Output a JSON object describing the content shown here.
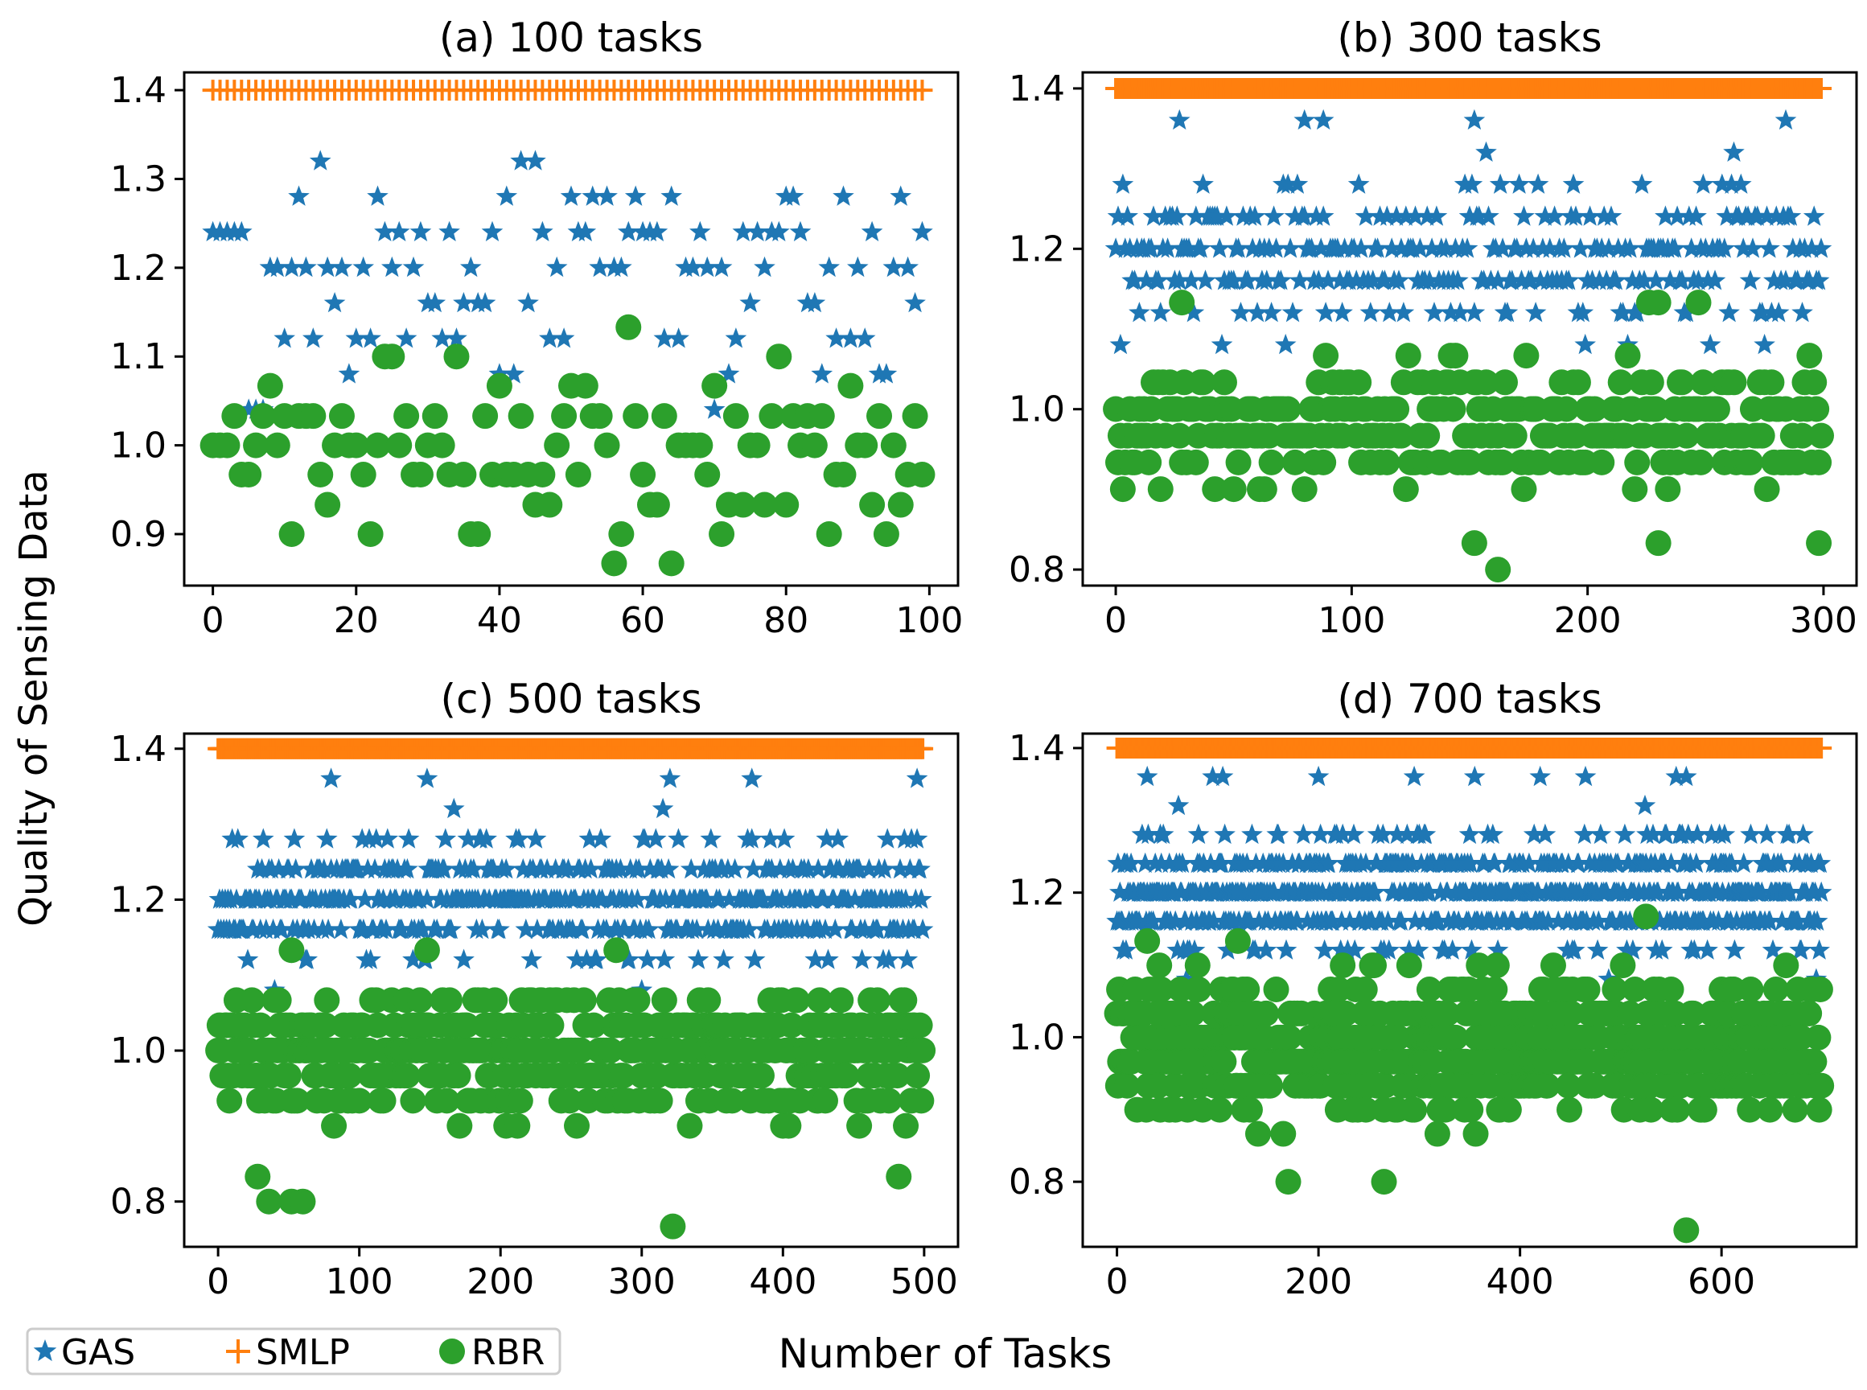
{
  "figure": {
    "ylabel": "Quality of Sensing Data",
    "xlabel": "Number of Tasks",
    "colors": {
      "GAS": "#1f77b4",
      "SMLP": "#ff7f0e",
      "RBR": "#2ca02c",
      "frame": "#000000",
      "legend_border": "#cccccc"
    },
    "legend": [
      {
        "name": "GAS",
        "marker": "star"
      },
      {
        "name": "SMLP",
        "marker": "plus"
      },
      {
        "name": "RBR",
        "marker": "circle"
      }
    ]
  },
  "chart_data": [
    {
      "type": "scatter",
      "title": "(a) 100 tasks",
      "n_tasks": 100,
      "xlim": [
        -4,
        104
      ],
      "ylim": [
        0.842,
        1.42
      ],
      "xticks": [
        0,
        20,
        40,
        60,
        80,
        100
      ],
      "yticks": [
        0.9,
        1.0,
        1.1,
        1.2,
        1.3,
        1.4
      ],
      "ytick_decimals": 1,
      "series": [
        {
          "name": "GAS",
          "marker": "star",
          "values": [
            1.24,
            1.24,
            1.24,
            1.24,
            1.24,
            1.04,
            1.04,
            1.04,
            1.2,
            1.2,
            1.12,
            1.2,
            1.28,
            1.2,
            1.12,
            1.32,
            1.2,
            1.16,
            1.2,
            1.08,
            1.12,
            1.2,
            1.12,
            1.28,
            1.24,
            1.2,
            1.24,
            1.12,
            1.2,
            1.24,
            1.16,
            1.16,
            1.12,
            1.24,
            1.12,
            1.16,
            1.2,
            1.16,
            1.16,
            1.24,
            1.08,
            1.28,
            1.08,
            1.32,
            1.16,
            1.32,
            1.24,
            1.12,
            1.2,
            1.12,
            1.28,
            1.24,
            1.24,
            1.28,
            1.2,
            1.28,
            1.2,
            1.2,
            1.24,
            1.28,
            1.24,
            1.24,
            1.24,
            1.12,
            1.28,
            1.12,
            1.2,
            1.2,
            1.24,
            1.2,
            1.04,
            1.2,
            1.08,
            1.12,
            1.24,
            1.16,
            1.24,
            1.2,
            1.24,
            1.24,
            1.28,
            1.28,
            1.24,
            1.16,
            1.16,
            1.08,
            1.2,
            1.12,
            1.28,
            1.12,
            1.2,
            1.12,
            1.24,
            1.08,
            1.08,
            1.2,
            1.28,
            1.2,
            1.16,
            1.24
          ]
        },
        {
          "name": "SMLP",
          "marker": "plus",
          "constant": 1.4
        },
        {
          "name": "RBR",
          "marker": "circle",
          "values": [
            1.0,
            1.0,
            1.0,
            1.033,
            0.967,
            0.967,
            1.0,
            1.033,
            1.067,
            1.0,
            1.033,
            0.9,
            1.033,
            1.033,
            1.033,
            0.967,
            0.933,
            1.0,
            1.033,
            1.0,
            1.0,
            0.967,
            0.9,
            1.0,
            1.1,
            1.1,
            1.0,
            1.033,
            0.967,
            0.967,
            1.0,
            1.033,
            1.0,
            0.967,
            1.1,
            0.967,
            0.9,
            0.9,
            1.033,
            0.967,
            1.067,
            0.967,
            0.967,
            1.033,
            0.967,
            0.933,
            0.967,
            0.933,
            1.0,
            1.033,
            1.067,
            0.967,
            1.067,
            1.033,
            1.033,
            1.0,
            0.867,
            0.9,
            1.133,
            1.033,
            0.967,
            0.933,
            0.933,
            1.033,
            0.867,
            1.0,
            1.0,
            1.0,
            1.0,
            0.967,
            1.067,
            0.9,
            0.933,
            1.033,
            0.933,
            1.0,
            1.0,
            0.933,
            1.033,
            1.1,
            0.933,
            1.033,
            1.0,
            1.033,
            1.0,
            1.033,
            0.9,
            0.967,
            0.967,
            1.067,
            1.0,
            1.0,
            0.933,
            1.033,
            0.9,
            1.0,
            0.933,
            0.967,
            1.033,
            0.967
          ]
        }
      ]
    },
    {
      "type": "scatter",
      "title": "(b) 300 tasks",
      "n_tasks": 300,
      "seed": 7,
      "xlim": [
        -14,
        314
      ],
      "ylim": [
        0.78,
        1.42
      ],
      "xticks": [
        0,
        100,
        200,
        300
      ],
      "yticks": [
        0.8,
        1.0,
        1.2,
        1.4
      ],
      "ytick_decimals": 1,
      "series": [
        {
          "name": "GAS",
          "marker": "star",
          "level_min": 1.04,
          "level_max": 1.32,
          "level_step": 0.04,
          "center": 1.2,
          "outliers": [
            [
              27,
              1.36
            ],
            [
              80,
              1.36
            ],
            [
              88,
              1.36
            ],
            [
              152,
              1.36
            ],
            [
              284,
              1.36
            ]
          ]
        },
        {
          "name": "SMLP",
          "marker": "plus",
          "constant": 1.4
        },
        {
          "name": "RBR",
          "marker": "circle",
          "level_min": 0.867,
          "level_max": 1.1,
          "level_step": 0.0333,
          "center": 0.983,
          "outliers": [
            [
              28,
              1.133
            ],
            [
              230,
              1.133
            ],
            [
              247,
              1.133
            ],
            [
              226,
              1.133
            ],
            [
              162,
              0.8
            ],
            [
              230,
              0.833
            ],
            [
              152,
              0.833
            ],
            [
              298,
              0.833
            ]
          ]
        }
      ]
    },
    {
      "type": "scatter",
      "title": "(c) 500 tasks",
      "n_tasks": 500,
      "seed": 11,
      "xlim": [
        -24,
        524
      ],
      "ylim": [
        0.74,
        1.42
      ],
      "xticks": [
        0,
        100,
        200,
        300,
        400,
        500
      ],
      "yticks": [
        0.8,
        1.0,
        1.2,
        1.4
      ],
      "ytick_decimals": 1,
      "series": [
        {
          "name": "GAS",
          "marker": "star",
          "level_min": 1.08,
          "level_max": 1.32,
          "level_step": 0.04,
          "center": 1.2,
          "outliers": [
            [
              80,
              1.36
            ],
            [
              148,
              1.36
            ],
            [
              320,
              1.36
            ],
            [
              378,
              1.36
            ],
            [
              495,
              1.36
            ]
          ]
        },
        {
          "name": "SMLP",
          "marker": "plus",
          "constant": 1.4
        },
        {
          "name": "RBR",
          "marker": "circle",
          "level_min": 0.867,
          "level_max": 1.1,
          "level_step": 0.0333,
          "center": 1.0,
          "outliers": [
            [
              52,
              1.133
            ],
            [
              148,
              1.133
            ],
            [
              282,
              1.133
            ],
            [
              36,
              0.8
            ],
            [
              52,
              0.8
            ],
            [
              60,
              0.8
            ],
            [
              28,
              0.833
            ],
            [
              322,
              0.767
            ],
            [
              482,
              0.833
            ]
          ]
        }
      ]
    },
    {
      "type": "scatter",
      "title": "(d) 700 tasks",
      "n_tasks": 700,
      "seed": 23,
      "xlim": [
        -34,
        734
      ],
      "ylim": [
        0.71,
        1.42
      ],
      "xticks": [
        0,
        200,
        400,
        600
      ],
      "yticks": [
        0.8,
        1.0,
        1.2,
        1.4
      ],
      "ytick_decimals": 1,
      "series": [
        {
          "name": "GAS",
          "marker": "star",
          "level_min": 1.08,
          "level_max": 1.32,
          "level_step": 0.04,
          "center": 1.2,
          "outliers": [
            [
              30,
              1.36
            ],
            [
              95,
              1.36
            ],
            [
              105,
              1.36
            ],
            [
              200,
              1.36
            ],
            [
              295,
              1.36
            ],
            [
              355,
              1.36
            ],
            [
              420,
              1.36
            ],
            [
              465,
              1.36
            ],
            [
              555,
              1.36
            ],
            [
              565,
              1.36
            ]
          ]
        },
        {
          "name": "SMLP",
          "marker": "plus",
          "constant": 1.4
        },
        {
          "name": "RBR",
          "marker": "circle",
          "level_min": 0.833,
          "level_max": 1.1,
          "level_step": 0.0333,
          "center": 1.0,
          "outliers": [
            [
              30,
              1.133
            ],
            [
              525,
              1.167
            ],
            [
              120,
              1.133
            ],
            [
              170,
              0.8
            ],
            [
              265,
              0.8
            ],
            [
              565,
              0.733
            ]
          ]
        }
      ]
    }
  ]
}
